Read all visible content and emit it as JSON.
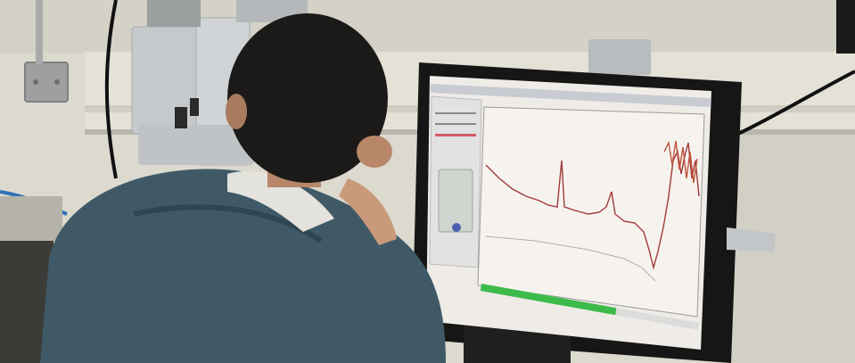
{
  "scene": {
    "subject": "person-at-computer",
    "colors": {
      "wall": "#dcd9cf",
      "wall_shadow": "#c9c6ba",
      "hoodie": "#3f5a66",
      "hair": "#1b1a19",
      "skin": "#c99a7a",
      "monitor_bezel": "#161616",
      "screen_bg": "#efece8",
      "spectrum_line": "#a23a3a",
      "progress_bar": "#3cbb4a",
      "instrument": "#c9cdd0"
    }
  },
  "monitor": {
    "screen": {
      "spectrum": {
        "type": "line",
        "trace_color": "#a23a3a",
        "noise_color": "#c2553f"
      },
      "progress": {
        "fraction": 0.62
      }
    }
  }
}
